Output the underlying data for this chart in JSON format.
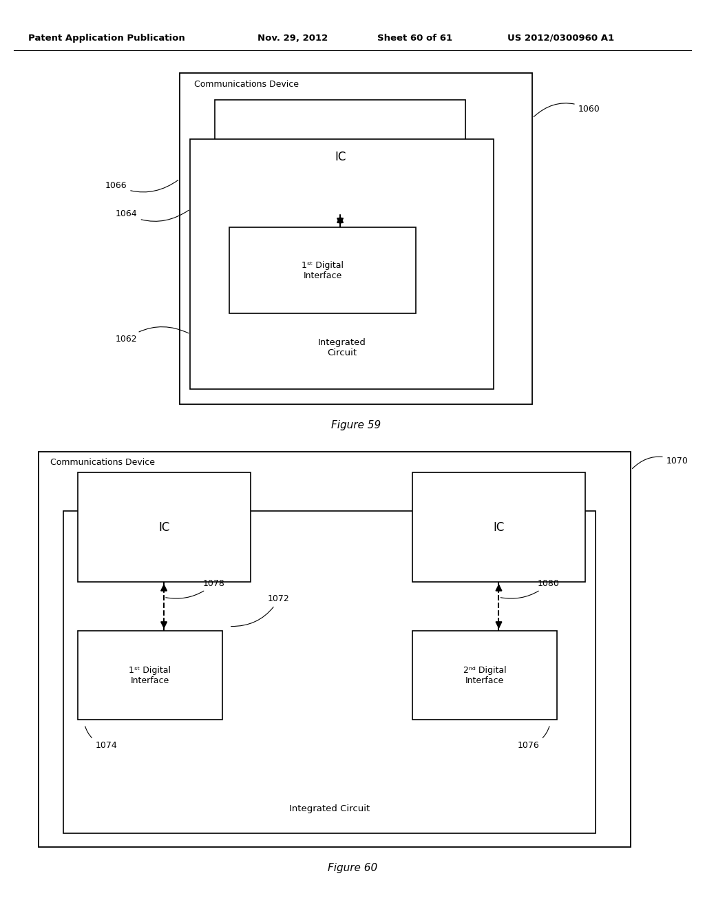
{
  "bg_color": "#ffffff",
  "header_text": "Patent Application Publication",
  "header_date": "Nov. 29, 2012",
  "header_sheet": "Sheet 60 of 61",
  "header_patent": "US 2012/0300960 A1"
}
